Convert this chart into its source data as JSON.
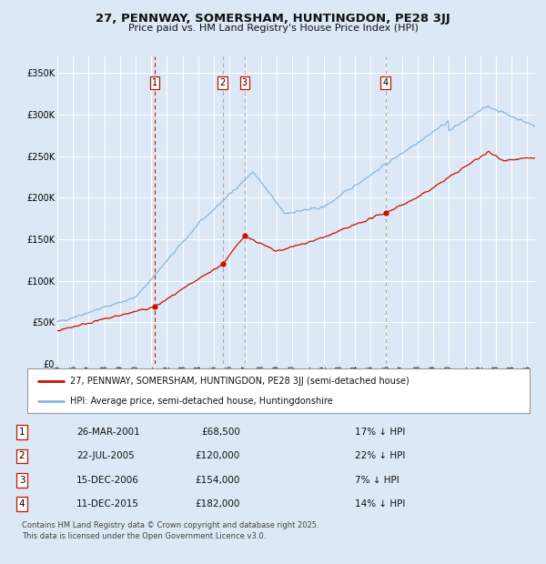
{
  "title": "27, PENNWAY, SOMERSHAM, HUNTINGDON, PE28 3JJ",
  "subtitle": "Price paid vs. HM Land Registry's House Price Index (HPI)",
  "bg_color": "#dce8f5",
  "plot_bg_color": "#dce8f5",
  "grid_color": "#ffffff",
  "hpi_color": "#89b8dc",
  "price_color": "#cc1100",
  "transactions": [
    {
      "num": 1,
      "date_label": "26-MAR-2001",
      "date_x": 2001.23,
      "price": 68500,
      "pct": "17%",
      "vline_color": "#cc1100"
    },
    {
      "num": 2,
      "date_label": "22-JUL-2005",
      "date_x": 2005.55,
      "price": 120000,
      "pct": "22%",
      "vline_color": "#aaaaaa"
    },
    {
      "num": 3,
      "date_label": "15-DEC-2006",
      "date_x": 2006.96,
      "price": 154000,
      "pct": "7%",
      "vline_color": "#aaaaaa"
    },
    {
      "num": 4,
      "date_label": "11-DEC-2015",
      "date_x": 2015.95,
      "price": 182000,
      "pct": "14%",
      "vline_color": "#aaaaaa"
    }
  ],
  "legend_label_red": "27, PENNWAY, SOMERSHAM, HUNTINGDON, PE28 3JJ (semi-detached house)",
  "legend_label_blue": "HPI: Average price, semi-detached house, Huntingdonshire",
  "footnote": "Contains HM Land Registry data © Crown copyright and database right 2025.\nThis data is licensed under the Open Government Licence v3.0.",
  "ylim": [
    0,
    370000
  ],
  "xlim": [
    1995,
    2025.5
  ],
  "yticks": [
    0,
    50000,
    100000,
    150000,
    200000,
    250000,
    300000,
    350000
  ],
  "ytick_labels": [
    "£0",
    "£50K",
    "£100K",
    "£150K",
    "£200K",
    "£250K",
    "£300K",
    "£350K"
  ],
  "xtick_years": [
    1995,
    1996,
    1997,
    1998,
    1999,
    2000,
    2001,
    2002,
    2003,
    2004,
    2005,
    2006,
    2007,
    2008,
    2009,
    2010,
    2011,
    2012,
    2013,
    2014,
    2015,
    2016,
    2017,
    2018,
    2019,
    2020,
    2021,
    2022,
    2023,
    2024,
    2025
  ]
}
